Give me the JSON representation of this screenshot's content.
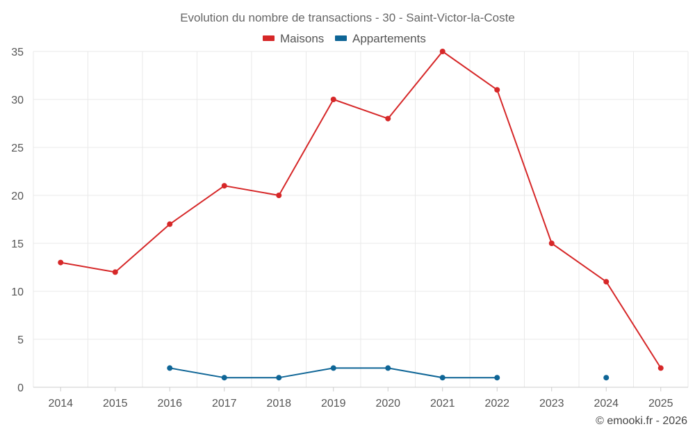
{
  "chart_data": {
    "type": "line",
    "title": "Evolution du nombre de transactions - 30 - Saint-Victor-la-Coste",
    "categories": [
      "2014",
      "2015",
      "2016",
      "2017",
      "2018",
      "2019",
      "2020",
      "2021",
      "2022",
      "2023",
      "2024",
      "2025"
    ],
    "series": [
      {
        "name": "Maisons",
        "color": "#d62728",
        "values": [
          13,
          12,
          17,
          21,
          20,
          30,
          28,
          35,
          31,
          15,
          11,
          2
        ]
      },
      {
        "name": "Appartements",
        "color": "#0e6596",
        "values": [
          null,
          null,
          2,
          1,
          1,
          2,
          2,
          1,
          1,
          null,
          1,
          null
        ]
      }
    ],
    "ylim": [
      0,
      35
    ],
    "yticks": [
      "0",
      "5",
      "10",
      "15",
      "20",
      "25",
      "30",
      "35"
    ],
    "legend_position": "top-center",
    "grid": true
  },
  "credit": "© emooki.fr - 2026"
}
